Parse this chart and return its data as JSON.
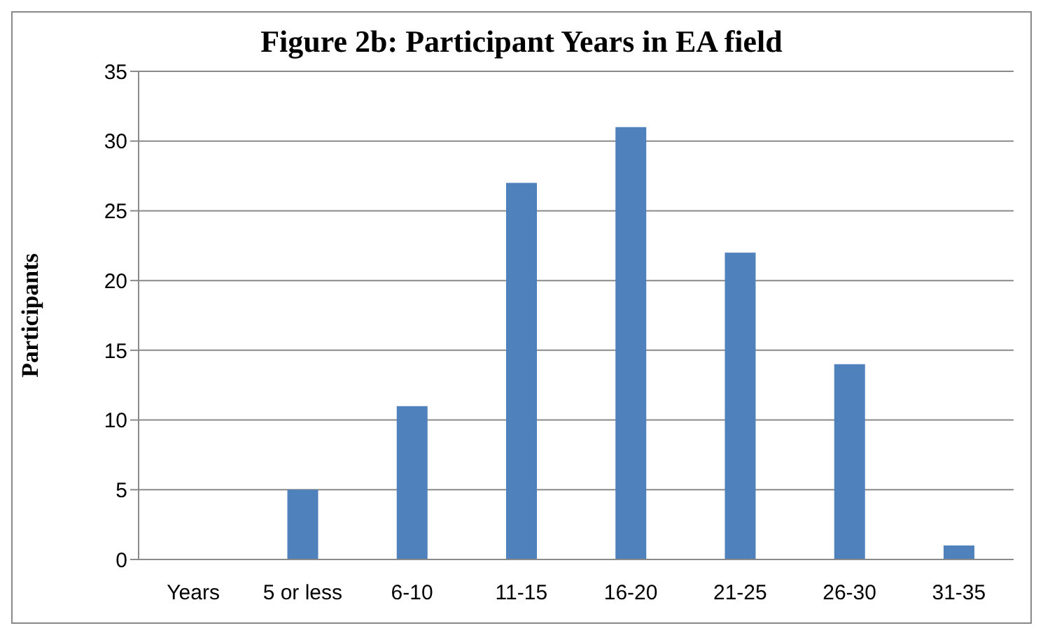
{
  "chart_data": {
    "type": "bar",
    "title": "Figure 2b: Participant Years in EA field",
    "ylabel": "Participants",
    "categories": [
      "Years",
      "5 or less",
      "6-10",
      "11-15",
      "16-20",
      "21-25",
      "26-30",
      "31-35"
    ],
    "values": [
      null,
      5,
      11,
      27,
      31,
      22,
      14,
      1
    ],
    "color": "#4f81bd",
    "ylim": [
      0,
      35
    ],
    "yticks": [
      0,
      5,
      10,
      15,
      20,
      25,
      30,
      35
    ],
    "grid": "y",
    "legend": false
  }
}
